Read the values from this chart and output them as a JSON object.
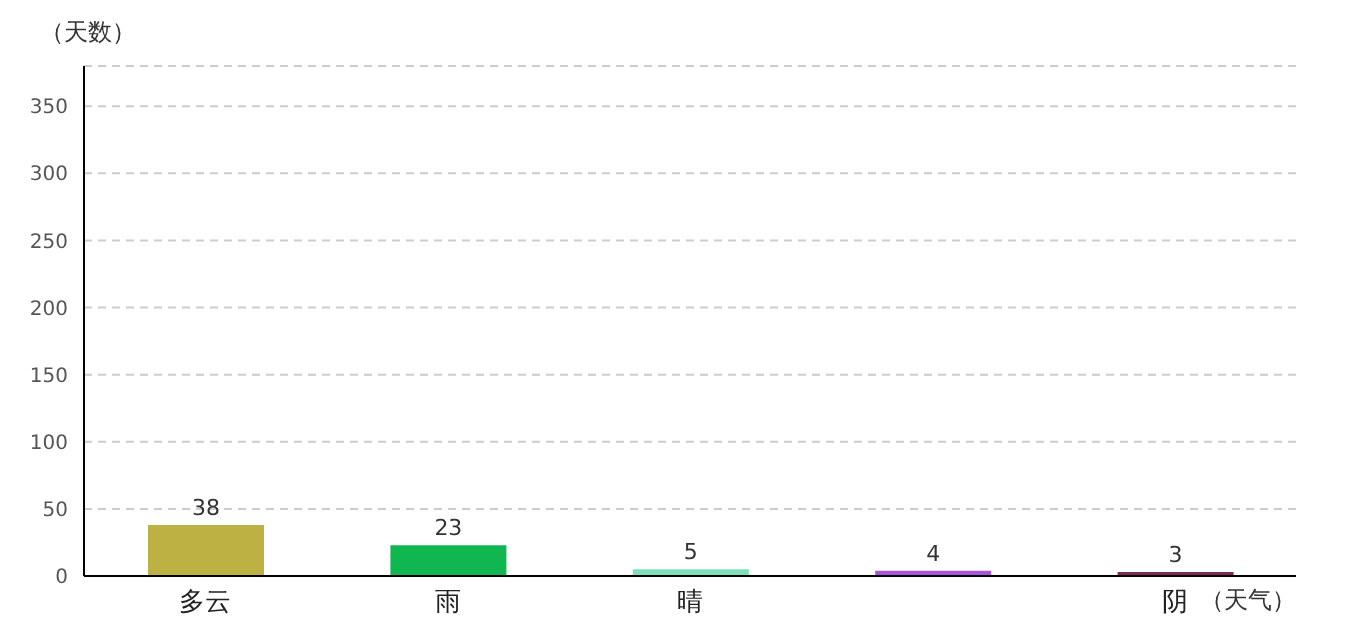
{
  "chart_data": {
    "type": "bar",
    "xlabel": "（天气）",
    "ylabel": "（天数）",
    "categories": [
      "多云",
      "雨",
      "晴",
      null,
      "阴"
    ],
    "values": [
      38,
      23,
      5,
      4,
      3
    ],
    "colors": [
      "#bdb143",
      "#10b750",
      "#7fe0b8",
      "#a855d8",
      "#7a2a55"
    ],
    "ylim": [
      0,
      380
    ],
    "yticks": [
      0,
      50,
      100,
      150,
      200,
      250,
      300,
      350
    ],
    "grid": "y",
    "data_labels": true
  }
}
